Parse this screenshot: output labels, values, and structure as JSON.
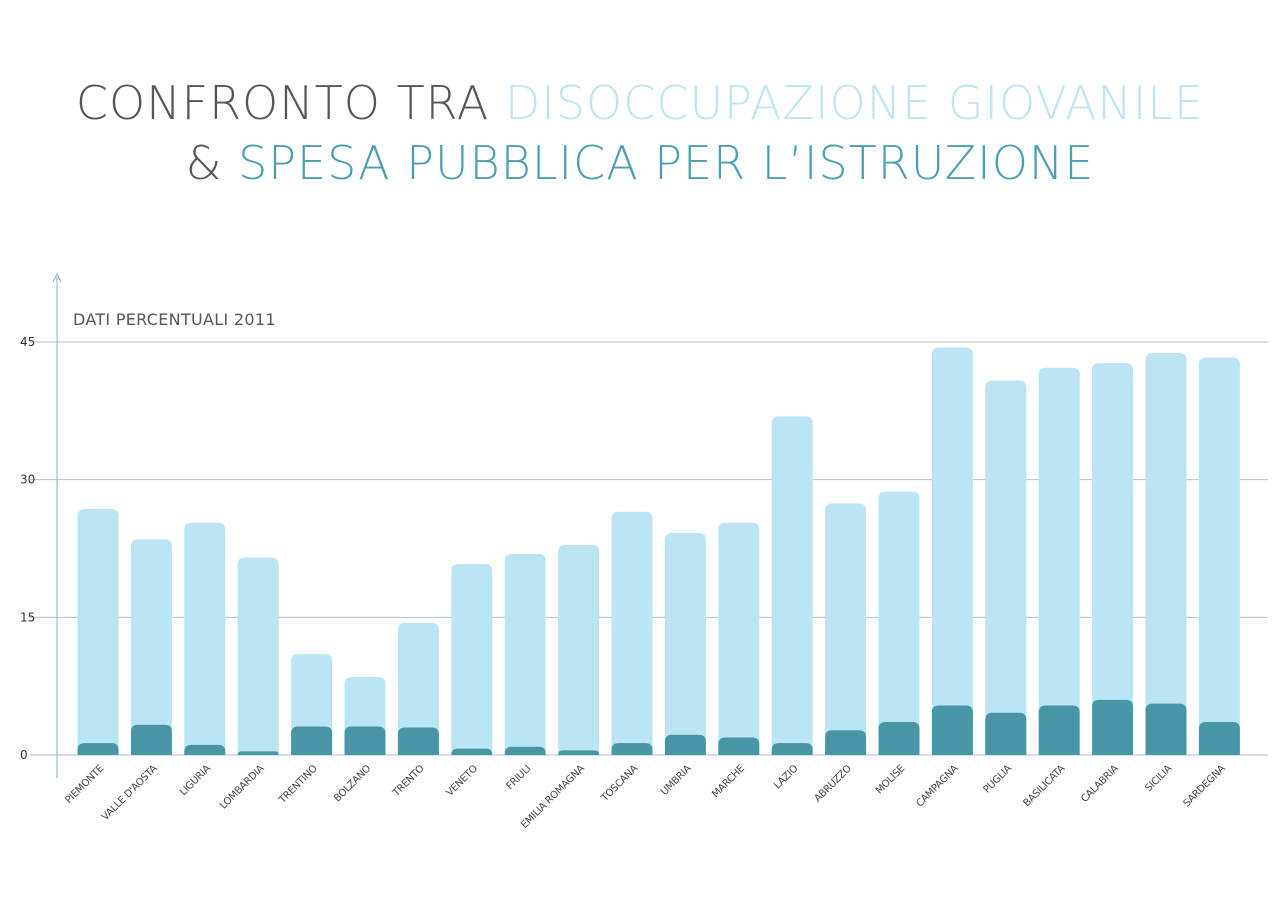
{
  "title": {
    "line1_a": "CONFRONTO TRA",
    "line1_b": "DISOCCUPAZIONE GIOVANILE",
    "line2_a": "&",
    "line2_b": "SPESA PUBBLICA PER L’ISTRUZIONE"
  },
  "colors": {
    "series_light": "#bce5f3",
    "series_dark": "#4895a8",
    "gridline": "#a9c6d2",
    "axis": "#7fb3c4"
  },
  "chart_data": {
    "type": "bar",
    "ylabel": "DATI PERCENTUALI 2011",
    "ylim": [
      0,
      45
    ],
    "yticks": [
      "0",
      "15",
      "30",
      "45"
    ],
    "grid": true,
    "categories": [
      "PIEMONTE",
      "VALLE D'AOSTA",
      "LIGURIA",
      "LOMBARDIA",
      "TRENTINO",
      "BOLZANO",
      "TRENTO",
      "VENETO",
      "FRIULI",
      "EMILIA ROMAGNA",
      "TOSCANA",
      "UMBRIA",
      "MARCHE",
      "LAZIO",
      "ABRUZZO",
      "MOLISE",
      "CAMPAGNA",
      "PUGLIA",
      "BASILICATA",
      "CALABRIA",
      "SICILIA",
      "SARDEGNA"
    ],
    "series": [
      {
        "values": [
          26.8,
          23.5,
          25.3,
          21.5,
          11.0,
          8.5,
          14.4,
          20.8,
          21.9,
          22.9,
          26.5,
          24.2,
          25.3,
          36.9,
          27.4,
          28.7,
          44.4,
          40.8,
          42.2,
          42.7,
          43.8,
          43.3
        ]
      },
      {
        "values": [
          1.3,
          3.3,
          1.1,
          0.4,
          3.1,
          3.1,
          3.0,
          0.7,
          0.9,
          0.5,
          1.3,
          2.2,
          1.9,
          1.3,
          2.7,
          3.6,
          5.4,
          4.6,
          5.4,
          6.0,
          5.6,
          3.6
        ]
      }
    ]
  }
}
